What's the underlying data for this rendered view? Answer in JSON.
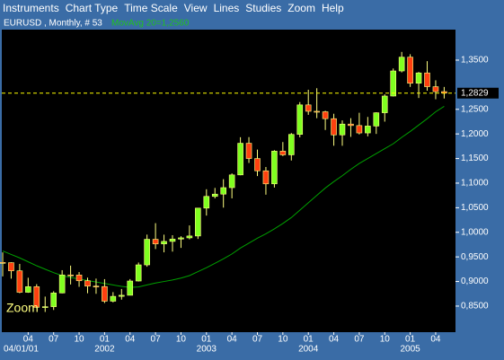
{
  "menu": [
    "Instruments",
    "Chart Type",
    "Time Scale",
    "View",
    "Lines",
    "Studies",
    "Zoom",
    "Help"
  ],
  "chart_data": {
    "type": "candlestick",
    "title": "EURUSD , Monthly, # 53",
    "study_label": "MovAvg 20=1,2560",
    "annotation": "Zoom",
    "categories": [
      null,
      null,
      null,
      "04",
      null,
      null,
      "07",
      null,
      null,
      "10",
      null,
      null,
      "01",
      null,
      null,
      "04",
      null,
      null,
      "07",
      null,
      null,
      "10",
      null,
      null,
      "01",
      null,
      null,
      "04",
      null,
      null,
      "07",
      null,
      null,
      "10",
      null,
      null,
      "01",
      null,
      null,
      "04",
      null,
      null,
      "07",
      null,
      null,
      "10",
      null,
      null,
      "01",
      null,
      null,
      "04",
      null
    ],
    "year_categories": [
      "04/01/01",
      null,
      null,
      null,
      null,
      null,
      null,
      null,
      null,
      null,
      null,
      null,
      "2002",
      null,
      null,
      null,
      null,
      null,
      null,
      null,
      null,
      null,
      null,
      null,
      "2003",
      null,
      null,
      null,
      null,
      null,
      null,
      null,
      null,
      null,
      null,
      null,
      "2004",
      null,
      null,
      null,
      null,
      null,
      null,
      null,
      null,
      null,
      null,
      null,
      "2005",
      null,
      null,
      null,
      null
    ],
    "open": [
      0.9388,
      0.9383,
      0.9217,
      0.8781,
      0.8895,
      0.8475,
      0.8488,
      0.8767,
      0.9133,
      0.9132,
      0.9015,
      0.8906,
      0.8897,
      0.86,
      0.8698,
      0.872,
      0.901,
      0.9338,
      0.9858,
      0.9764,
      0.9815,
      0.9863,
      0.9887,
      0.9925,
      1.0492,
      1.073,
      1.0776,
      1.0908,
      1.1167,
      1.181,
      1.15,
      1.125,
      1.0985,
      1.165,
      1.1575,
      1.199,
      1.259,
      1.246,
      1.245,
      1.231,
      1.198,
      1.22,
      1.217,
      1.202,
      1.216,
      1.243,
      1.277,
      1.328,
      1.356,
      1.303,
      1.324,
      1.296,
      1.286
    ],
    "high": [
      0.9593,
      0.939,
      0.9358,
      0.9076,
      0.8945,
      0.8693,
      0.8802,
      0.923,
      0.9323,
      0.9192,
      0.9078,
      0.9059,
      0.9048,
      0.8784,
      0.8848,
      0.9049,
      0.9386,
      0.9953,
      1.0186,
      0.9952,
      0.994,
      0.992,
      1.014,
      1.0497,
      1.0875,
      1.0902,
      1.108,
      1.1197,
      1.1933,
      1.1935,
      1.1682,
      1.1328,
      1.167,
      1.1835,
      1.2018,
      1.2647,
      1.2898,
      1.2929,
      1.247,
      1.241,
      1.2275,
      1.232,
      1.243,
      1.2345,
      1.244,
      1.2805,
      1.333,
      1.3667,
      1.362,
      1.326,
      1.348,
      1.309,
      1.2955
    ],
    "low": [
      0.9104,
      0.9058,
      0.8763,
      0.877,
      0.8455,
      0.8381,
      0.8421,
      0.876,
      0.894,
      0.8892,
      0.8761,
      0.875,
      0.8562,
      0.8576,
      0.8631,
      0.8719,
      0.9,
      0.93,
      0.966,
      0.9593,
      0.9609,
      0.9683,
      0.9858,
      0.9865,
      1.034,
      1.069,
      1.0502,
      1.069,
      1.116,
      1.141,
      1.1143,
      1.0765,
      1.091,
      1.155,
      1.146,
      1.193,
      1.2388,
      1.232,
      1.208,
      1.176,
      1.176,
      1.194,
      1.199,
      1.195,
      1.2,
      1.225,
      1.276,
      1.325,
      1.2955,
      1.273,
      1.288,
      1.2705,
      1.272
    ],
    "close": [
      0.9383,
      0.9217,
      0.8781,
      0.8895,
      0.8475,
      0.8488,
      0.8767,
      0.9133,
      0.9132,
      0.9015,
      0.8906,
      0.8897,
      0.86,
      0.8698,
      0.872,
      0.901,
      0.9338,
      0.9858,
      0.9764,
      0.9815,
      0.9863,
      0.9887,
      0.9925,
      1.0492,
      1.073,
      1.0776,
      1.0908,
      1.1167,
      1.181,
      1.15,
      1.125,
      1.0985,
      1.165,
      1.1575,
      1.199,
      1.259,
      1.246,
      1.245,
      1.231,
      1.198,
      1.22,
      1.217,
      1.202,
      1.216,
      1.243,
      1.277,
      1.328,
      1.356,
      1.303,
      1.324,
      1.296,
      1.286,
      1.2829
    ],
    "moving_average": {
      "color": "#00a000",
      "values": [
        0.962,
        0.955,
        0.948,
        0.94,
        0.932,
        0.925,
        0.918,
        0.912,
        0.908,
        0.905,
        0.902,
        0.899,
        0.896,
        0.893,
        0.89,
        0.888,
        0.889,
        0.893,
        0.897,
        0.9,
        0.903,
        0.907,
        0.912,
        0.92,
        0.928,
        0.937,
        0.946,
        0.956,
        0.968,
        0.978,
        0.988,
        0.997,
        1.007,
        1.018,
        1.03,
        1.045,
        1.06,
        1.075,
        1.09,
        1.103,
        1.115,
        1.128,
        1.14,
        1.15,
        1.16,
        1.17,
        1.18,
        1.193,
        1.205,
        1.218,
        1.231,
        1.245,
        1.256
      ]
    },
    "up_color": "#80ff20",
    "down_color": "#ff4010",
    "wick_color": "#ffff80",
    "last_price": {
      "value": 1.2829,
      "label": "1,2829",
      "color": "#ffff00"
    },
    "ylim": [
      0.797,
      1.412
    ],
    "yticks": [
      {
        "value": 0.85,
        "label": "0,8500"
      },
      {
        "value": 0.9,
        "label": "0,9000"
      },
      {
        "value": 0.95,
        "label": "0,9500"
      },
      {
        "value": 1.0,
        "label": "1,0000"
      },
      {
        "value": 1.05,
        "label": "1,0500"
      },
      {
        "value": 1.1,
        "label": "1,1000"
      },
      {
        "value": 1.15,
        "label": "1,1500"
      },
      {
        "value": 1.2,
        "label": "1,2000"
      },
      {
        "value": 1.25,
        "label": "1,2500"
      },
      {
        "value": 1.35,
        "label": "1,3500"
      }
    ]
  }
}
